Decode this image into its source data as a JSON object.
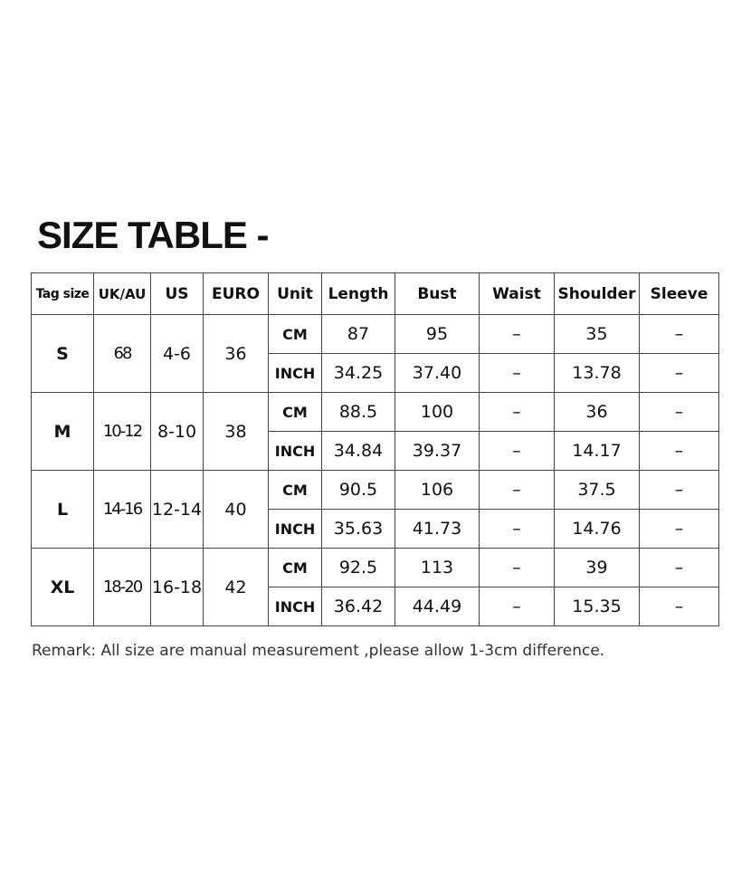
{
  "title": "SIZE TABLE -",
  "headers": [
    "Tag size",
    "UK/AU",
    "US",
    "EURO",
    "Unit",
    "Length",
    "Bust",
    "Waist",
    "Shoulder",
    "Sleeve"
  ],
  "sizes": [
    {
      "tag": "S",
      "uk": "68",
      "us": "4-6",
      "euro": "36",
      "rows": [
        {
          "unit": "CM",
          "length": "87",
          "bust": "95",
          "waist": "–",
          "shoulder": "35",
          "sleeve": "–"
        },
        {
          "unit": "INCH",
          "length": "34.25",
          "bust": "37.40",
          "waist": "–",
          "shoulder": "13.78",
          "sleeve": "–"
        }
      ]
    },
    {
      "tag": "M",
      "uk": "10-12",
      "us": "8-10",
      "euro": "38",
      "rows": [
        {
          "unit": "CM",
          "length": "88.5",
          "bust": "100",
          "waist": "–",
          "shoulder": "36",
          "sleeve": "–"
        },
        {
          "unit": "INCH",
          "length": "34.84",
          "bust": "39.37",
          "waist": "–",
          "shoulder": "14.17",
          "sleeve": "–"
        }
      ]
    },
    {
      "tag": "L",
      "uk": "14-16",
      "us": "12-14",
      "euro": "40",
      "rows": [
        {
          "unit": "CM",
          "length": "90.5",
          "bust": "106",
          "waist": "–",
          "shoulder": "37.5",
          "sleeve": "–"
        },
        {
          "unit": "INCH",
          "length": "35.63",
          "bust": "41.73",
          "waist": "–",
          "shoulder": "14.76",
          "sleeve": "–"
        }
      ]
    },
    {
      "tag": "XL",
      "uk": "18-20",
      "us": "16-18",
      "euro": "42",
      "rows": [
        {
          "unit": "CM",
          "length": "92.5",
          "bust": "113",
          "waist": "–",
          "shoulder": "39",
          "sleeve": "–"
        },
        {
          "unit": "INCH",
          "length": "36.42",
          "bust": "44.49",
          "waist": "–",
          "shoulder": "15.35",
          "sleeve": "–"
        }
      ]
    }
  ],
  "remark": "Remark: All size are manual measurement ,please allow 1-3cm difference."
}
